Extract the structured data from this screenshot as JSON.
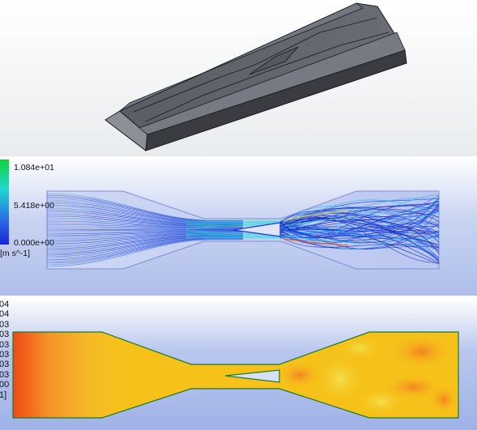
{
  "velocity_panel": {
    "legend": {
      "max_label": "1.084e+01",
      "mid_label": "5.418e+00",
      "min_label": "0.000e+00",
      "unit_label": "[m s^-1]"
    },
    "colors": {
      "background": "#aebee9",
      "streamline_low": "#0a1ed0",
      "streamline_high": "#1fe0ff"
    }
  },
  "pressure_panel": {
    "tick_fragments": [
      "04",
      "04",
      "03",
      "03",
      "03",
      "03",
      "03",
      "03",
      "00",
      "1]"
    ],
    "colors": {
      "fill": "#f6c21a",
      "outline": "#1a7a2c",
      "hot": "#f04a10"
    }
  },
  "cad_panel": {
    "colors": {
      "body": "#4b4e55",
      "edge": "#1c1d21"
    }
  }
}
